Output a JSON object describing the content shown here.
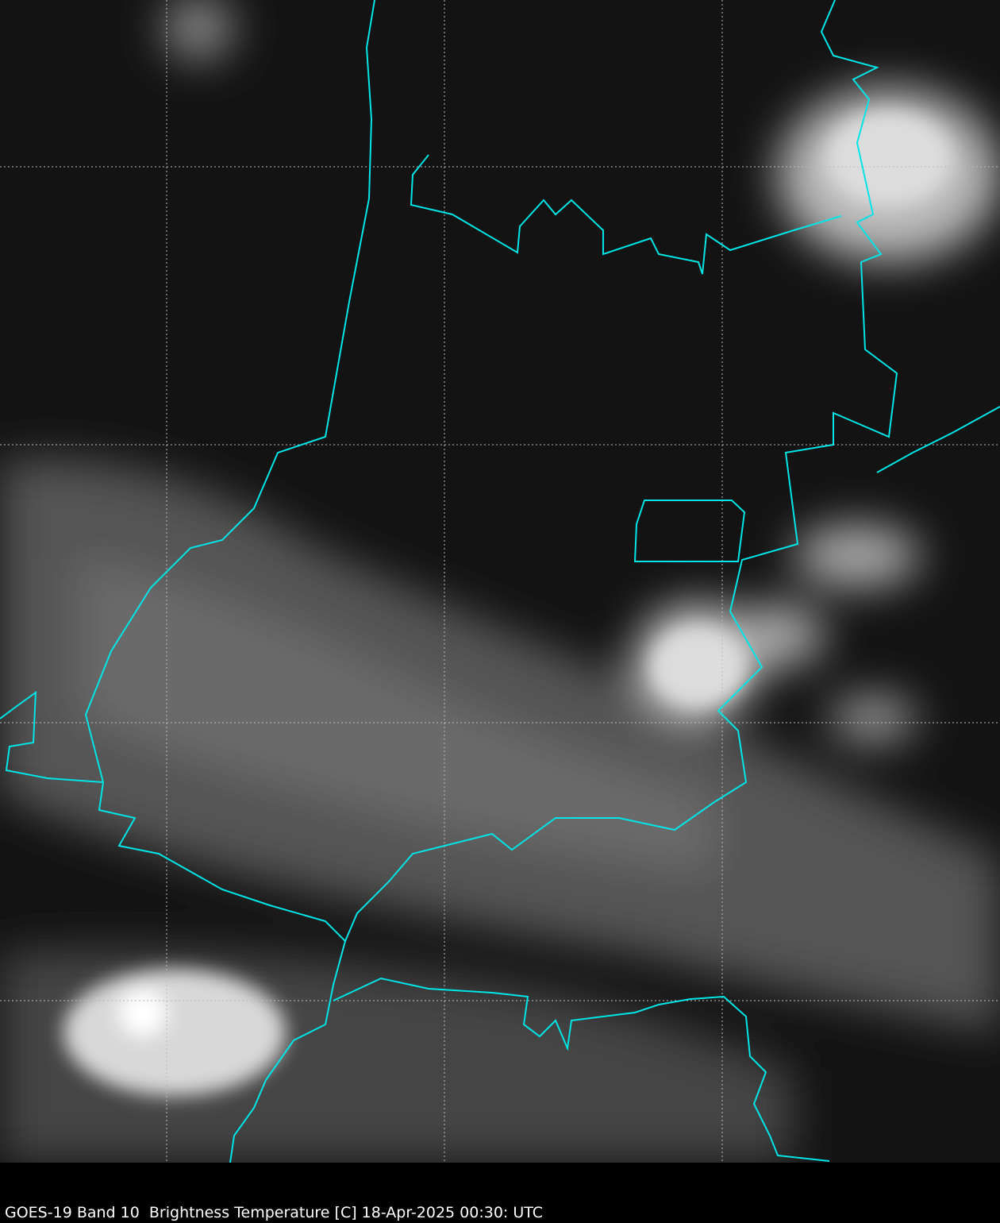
{
  "caption": "GOES-19 Band 10  Brightness Temperature [C] 18-Apr-2025 00:30: UTC",
  "colors": {
    "background": "#000000",
    "borders": "#00e5e5",
    "grid": "#bbbbbb",
    "clouds": "#e0e0e0"
  },
  "legend": {
    "colormap": "grayscale",
    "borders": "cyan political boundaries",
    "grid": "dashed white lat/lon lines"
  }
}
